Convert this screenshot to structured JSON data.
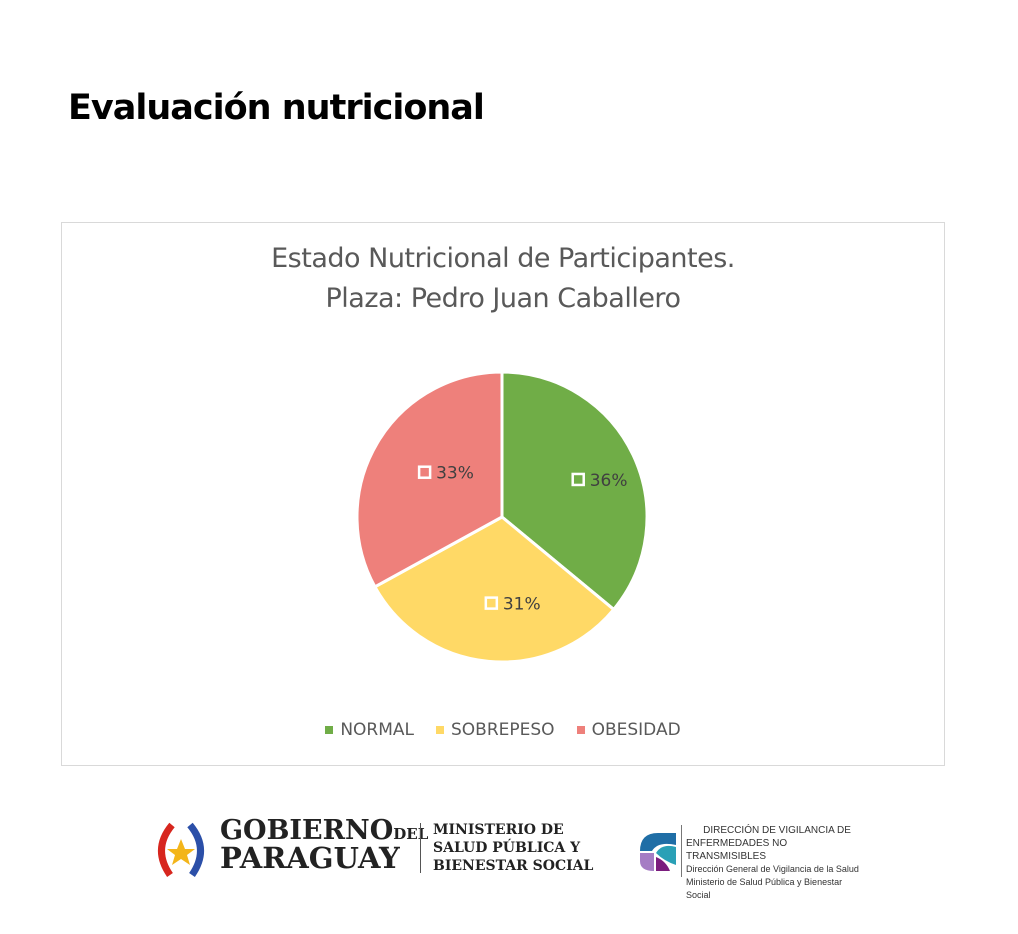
{
  "page": {
    "title": "Evaluación nutricional"
  },
  "chart_data": {
    "type": "pie",
    "title": [
      "Estado Nutricional de Participantes.",
      "Plaza: Pedro Juan Caballero"
    ],
    "categories": [
      "NORMAL",
      "SOBREPESO",
      "OBESIDAD"
    ],
    "values": [
      36,
      31,
      33
    ],
    "labels": [
      "36%",
      "31%",
      "33%"
    ],
    "colors": [
      "#70ad47",
      "#ffd966",
      "#ee807b"
    ],
    "legend_position": "bottom"
  },
  "footer": {
    "gov_line1": "GOBIERNO",
    "gov_del": "DEL",
    "gov_line2": "PARAGUAY",
    "ministry": [
      "MINISTERIO DE",
      "SALUD PÚBLICA Y",
      "BIENESTAR SOCIAL"
    ],
    "dvent": [
      "DIRECCIÓN DE VIGILANCIA DE",
      "ENFERMEDADES NO TRANSMISIBLES",
      "Dirección General de Vigilancia de la Salud",
      "Ministerio de Salud Pública y Bienestar Social"
    ]
  }
}
